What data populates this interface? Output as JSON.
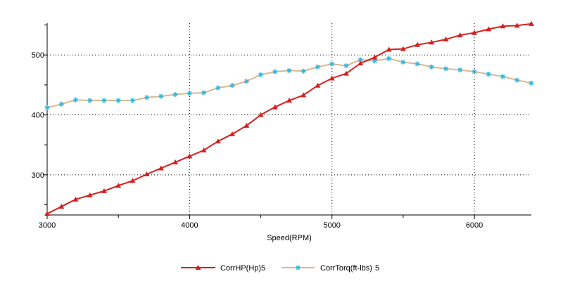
{
  "chart_data": {
    "type": "line",
    "xlabel": "Speed(RPM)",
    "xlim": [
      3000,
      6400
    ],
    "ylim": [
      233,
      553
    ],
    "x_ticks": [
      "3000",
      "4000",
      "5000",
      "6000"
    ],
    "y_ticks": [
      "300",
      "400",
      "500"
    ],
    "grid": true,
    "legend_position": "bottom",
    "x": [
      3000,
      3100,
      3200,
      3300,
      3400,
      3500,
      3600,
      3700,
      3800,
      3900,
      4000,
      4100,
      4200,
      4300,
      4400,
      4500,
      4600,
      4700,
      4800,
      4900,
      5000,
      5100,
      5200,
      5300,
      5400,
      5500,
      5600,
      5700,
      5800,
      5900,
      6000,
      6100,
      6200,
      6300,
      6400
    ],
    "series": [
      {
        "name": "CorrHP(Hp)",
        "suffix": "5",
        "color": "#d42020",
        "marker": "triangle",
        "values": [
          235,
          247,
          259,
          266,
          273,
          282,
          290,
          301,
          311,
          321,
          331,
          341,
          356,
          368,
          382,
          400,
          413,
          424,
          433,
          449,
          461,
          469,
          486,
          496,
          509,
          510,
          517,
          521,
          526,
          533,
          537,
          543,
          548,
          549,
          552
        ]
      },
      {
        "name": "CorrTorq(ft-lbs)",
        "suffix": "5",
        "color": "#d8b890",
        "marker_color": "#30b8e0",
        "marker": "star",
        "values": [
          412,
          418,
          425,
          424,
          424,
          424,
          424,
          429,
          431,
          434,
          436,
          437,
          445,
          449,
          456,
          467,
          472,
          474,
          473,
          480,
          485,
          482,
          492,
          490,
          494,
          488,
          485,
          480,
          477,
          475,
          472,
          468,
          464,
          458,
          453
        ]
      }
    ]
  }
}
